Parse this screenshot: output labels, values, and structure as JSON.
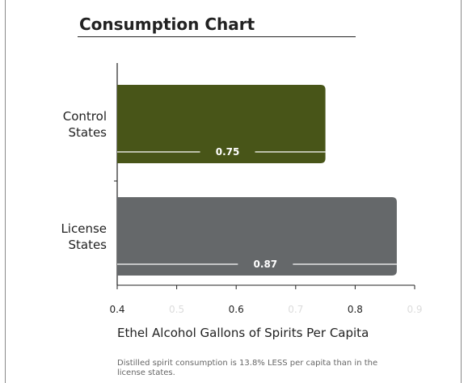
{
  "chart_data": {
    "type": "bar",
    "orientation": "horizontal",
    "title": "Consumption Chart",
    "xlabel": "Ethel Alcohol Gallons of Spirits Per Capita",
    "ylabel": "",
    "categories": [
      "Control\nStates",
      "License\nStates"
    ],
    "values": [
      0.75,
      0.87
    ],
    "bar_labels": [
      "0.75",
      "0.87"
    ],
    "colors": [
      "#485518",
      "#65686a"
    ],
    "xlim": [
      0.4,
      0.9
    ],
    "xticks": [
      {
        "value": 0.4,
        "label": "0.4",
        "faded": false
      },
      {
        "value": 0.5,
        "label": "0.5",
        "faded": true
      },
      {
        "value": 0.6,
        "label": "0.6",
        "faded": false
      },
      {
        "value": 0.7,
        "label": "0.7",
        "faded": true
      },
      {
        "value": 0.8,
        "label": "0.8",
        "faded": false
      },
      {
        "value": 0.9,
        "label": "0.9",
        "faded": true
      }
    ],
    "grid": false
  },
  "note": "Distilled spirit consumption is 13.8% LESS per capita than in the license states."
}
